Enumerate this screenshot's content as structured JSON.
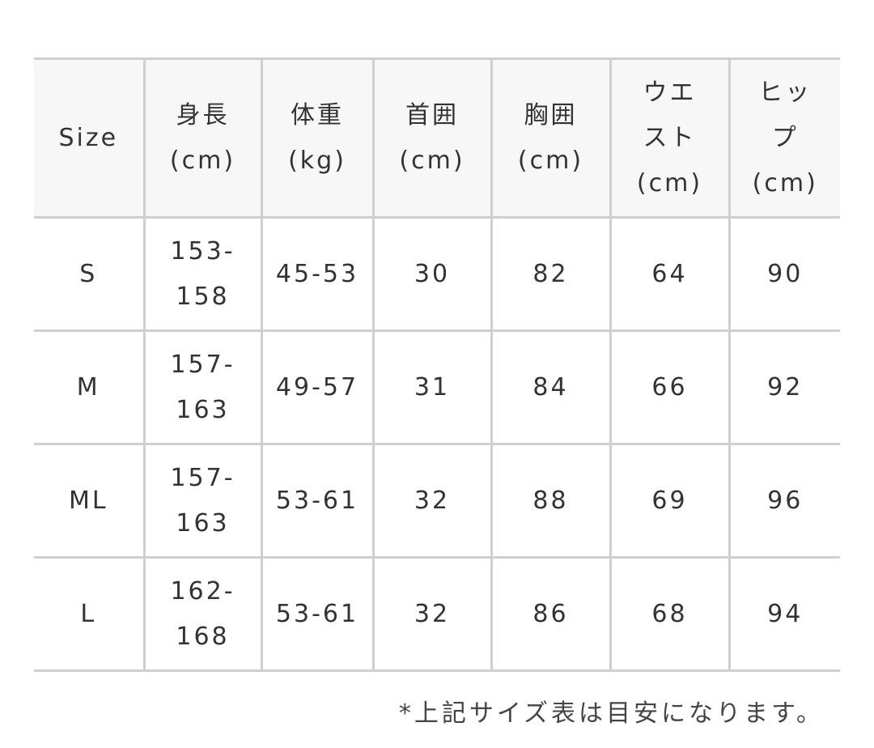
{
  "headers": [
    "Size",
    "身長\n(cm)",
    "体重\n(kg)",
    "首囲\n(cm)",
    "胸囲\n(cm)",
    "ウエ\nスト\n(cm)",
    "ヒッ\nプ\n(cm)"
  ],
  "rows": [
    [
      "S",
      "153-\n158",
      "45-53",
      "30",
      "82",
      "64",
      "90"
    ],
    [
      "M",
      "157-\n163",
      "49-57",
      "31",
      "84",
      "66",
      "92"
    ],
    [
      "ML",
      "157-\n163",
      "53-61",
      "32",
      "88",
      "69",
      "96"
    ],
    [
      "L",
      "162-\n168",
      "53-61",
      "32",
      "86",
      "68",
      "94"
    ]
  ],
  "note": "*上記サイズ表は目安になります。",
  "colors": {
    "header_bg": "#f7f7f7",
    "border": "#cfcfcf",
    "text": "#333333"
  }
}
